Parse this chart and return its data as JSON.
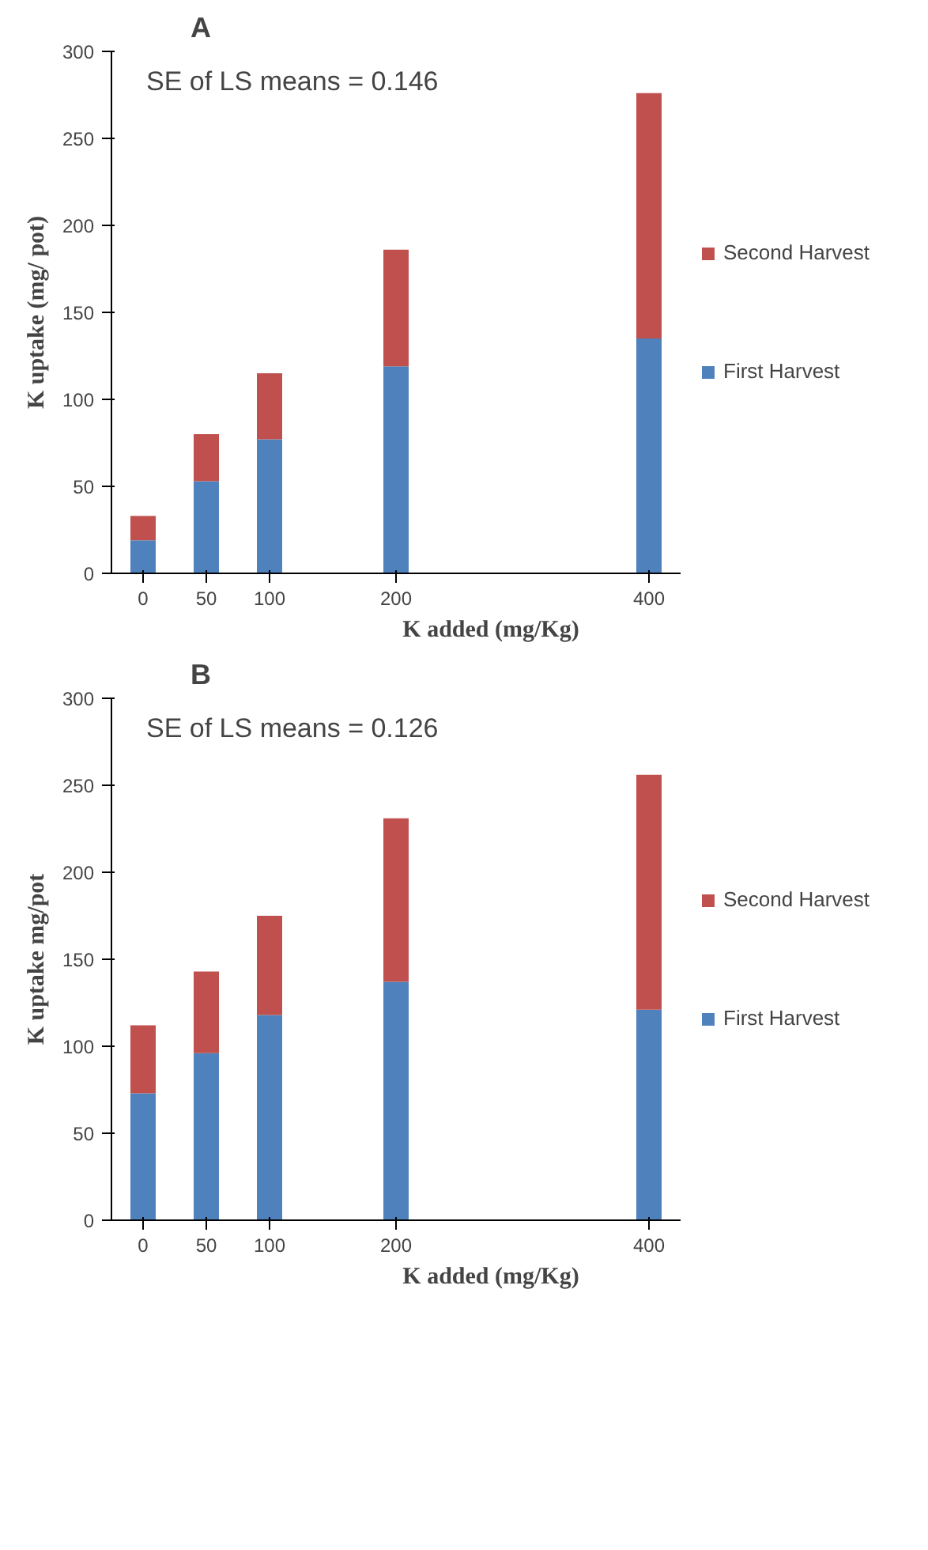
{
  "chart_data": [
    {
      "type": "bar",
      "title": "A",
      "xlabel": "K added (mg/Kg)",
      "ylabel": "K uptake (mg/ pot)",
      "stacked": true,
      "grid": false,
      "legend": "right",
      "categories": [
        "0",
        "50",
        "100",
        null,
        "200",
        null,
        null,
        null,
        "400"
      ],
      "ylim": [
        0,
        300
      ],
      "yticks": [
        0,
        50,
        100,
        150,
        200,
        250,
        300
      ],
      "annotations": [
        "SE of LS means = 0.146"
      ],
      "series": [
        {
          "name": "First Harvest",
          "color": "#4f81bd",
          "values": [
            19,
            53,
            77,
            null,
            119,
            null,
            null,
            null,
            135
          ]
        },
        {
          "name": "Second Harvest",
          "color": "#c0504d",
          "values": [
            14,
            27,
            38,
            null,
            67,
            null,
            null,
            null,
            141
          ]
        }
      ]
    },
    {
      "type": "bar",
      "title": "B",
      "xlabel": "K added (mg/Kg)",
      "ylabel": "K uptake mg/pot",
      "stacked": true,
      "grid": false,
      "legend": "right",
      "categories": [
        "0",
        "50",
        "100",
        null,
        "200",
        null,
        null,
        null,
        "400"
      ],
      "ylim": [
        0,
        300
      ],
      "yticks": [
        0,
        50,
        100,
        150,
        200,
        250,
        300
      ],
      "annotations": [
        "SE of  LS means  = 0.126"
      ],
      "series": [
        {
          "name": "First Harvest",
          "color": "#4f81bd",
          "values": [
            73,
            96,
            118,
            null,
            137,
            null,
            null,
            null,
            121
          ]
        },
        {
          "name": "Second Harvest",
          "color": "#c0504d",
          "values": [
            39,
            47,
            57,
            null,
            94,
            null,
            null,
            null,
            135
          ]
        }
      ]
    }
  ]
}
